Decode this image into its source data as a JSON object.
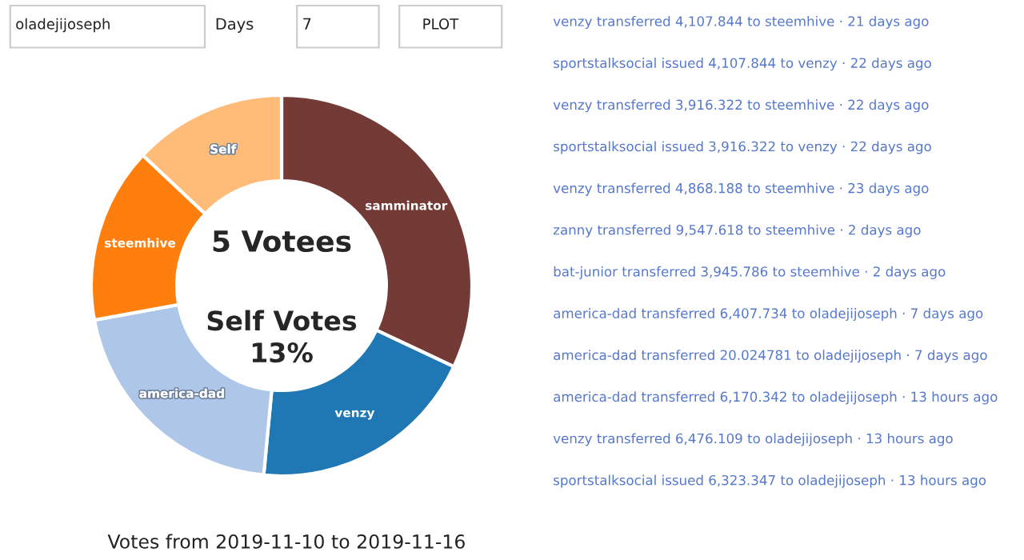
{
  "chart_data": {
    "type": "donut",
    "categories": [
      "samminator",
      "venzy",
      "america-dad",
      "steemhive",
      "Self"
    ],
    "values": [
      32,
      19.5,
      20.6,
      14.9,
      13
    ],
    "colors": [
      "#743a36",
      "#1f77b4",
      "#aec7e8",
      "#ff7f0e",
      "#ffbb78"
    ],
    "annotations": [
      "oladejijoseph",
      "Days",
      "7",
      "PLOT",
      "5 Votees",
      "Self Votes\n13%",
      "Votes from 2019-11-10 to 2019-11-16",
      "venzy transferred 4,107.844 to steemhive · 21 days ago",
      "sportstalksocial issued 4,107.844 to venzy · 22 days ago",
      "venzy transferred 3,916.322 to steemhive · 22 days ago",
      "sportstalksocial issued 3,916.322 to venzy · 22 days ago",
      "venzy transferred 4,868.188 to steemhive · 23 days ago",
      "zanny transferred 9,547.618 to steemhive · 2 days ago",
      "bat-junior transferred 3,945.786 to steemhive · 2 days ago",
      "america-dad transferred 6,407.734 to oladejijoseph · 7 days ago",
      "america-dad transferred 20.024781 to oladejijoseph · 7 days ago",
      "america-dad transferred 6,170.342 to oladejijoseph · 13 hours ago",
      "venzy transferred 6,476.109 to oladejijoseph · 13 hours ago",
      "sportstalksocial issued 6,323.347 to oladejijoseph · 13 hours ago"
    ]
  }
}
